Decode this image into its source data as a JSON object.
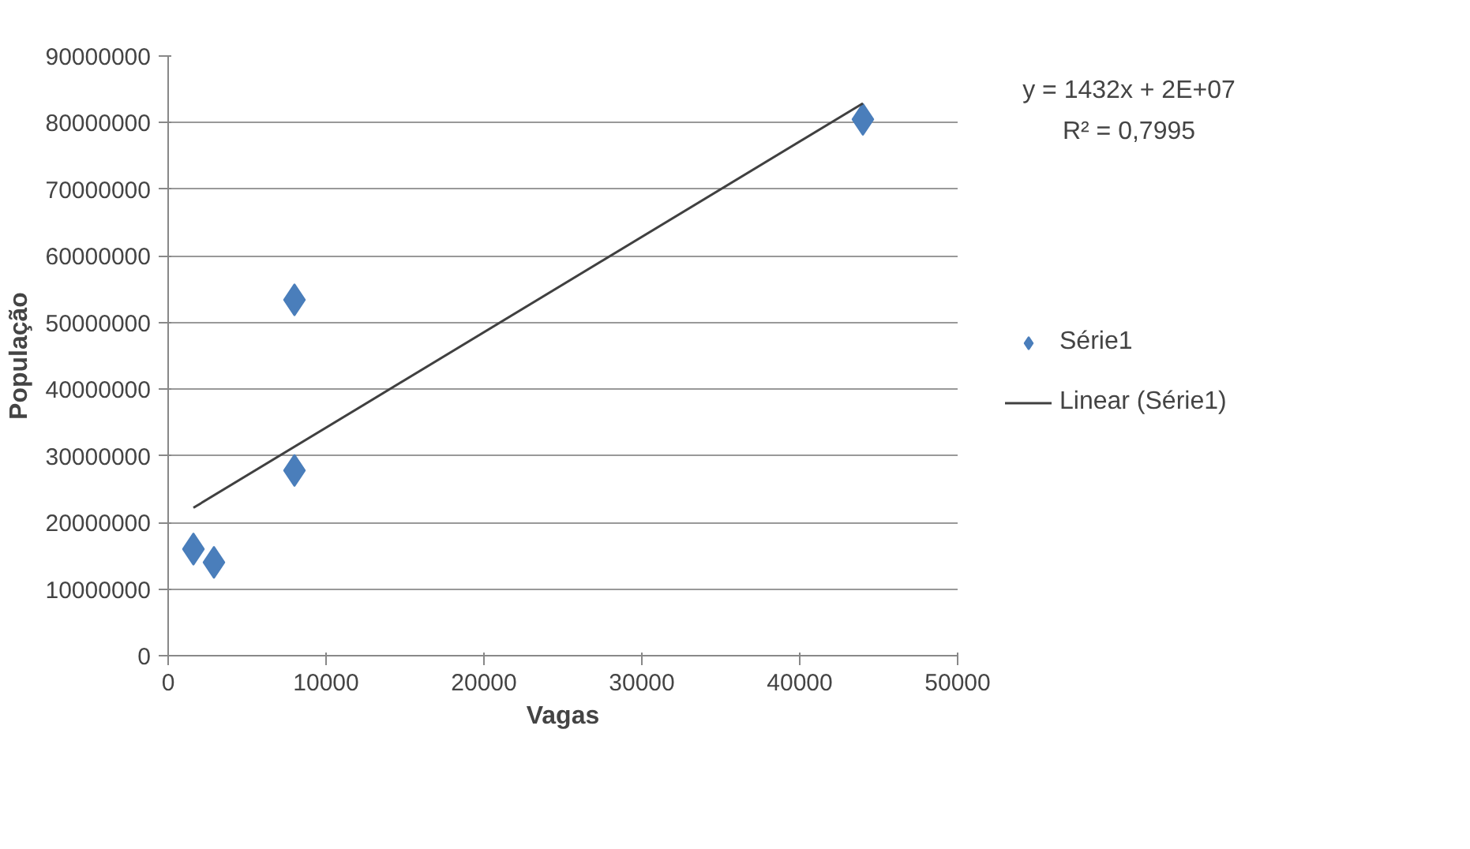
{
  "chart_data": {
    "type": "scatter",
    "xlabel": "Vagas",
    "ylabel": "População",
    "xlim": [
      0,
      50000
    ],
    "xticks": [
      0,
      10000,
      20000,
      30000,
      40000,
      50000
    ],
    "ylim": [
      0,
      90000000
    ],
    "yticks": [
      0,
      10000000,
      20000000,
      30000000,
      40000000,
      50000000,
      60000000,
      70000000,
      80000000,
      90000000
    ],
    "grid": "y",
    "legend": "right",
    "annotations": [
      "y = 1432x + 2E+07",
      "R² = 0,7995"
    ],
    "series": [
      {
        "name": "Série1",
        "marker": "diamond",
        "color": "#4a7ebb",
        "x": [
          1600,
          2900,
          8000,
          8000,
          44000
        ],
        "values": [
          16000000,
          14000000,
          53400000,
          27800000,
          80500000
        ]
      },
      {
        "name": "Linear (Série1)",
        "type": "line",
        "color": "#404040",
        "line_style": "solid",
        "x": [
          1600,
          44000
        ],
        "values": [
          22200000,
          82900000
        ]
      }
    ]
  }
}
